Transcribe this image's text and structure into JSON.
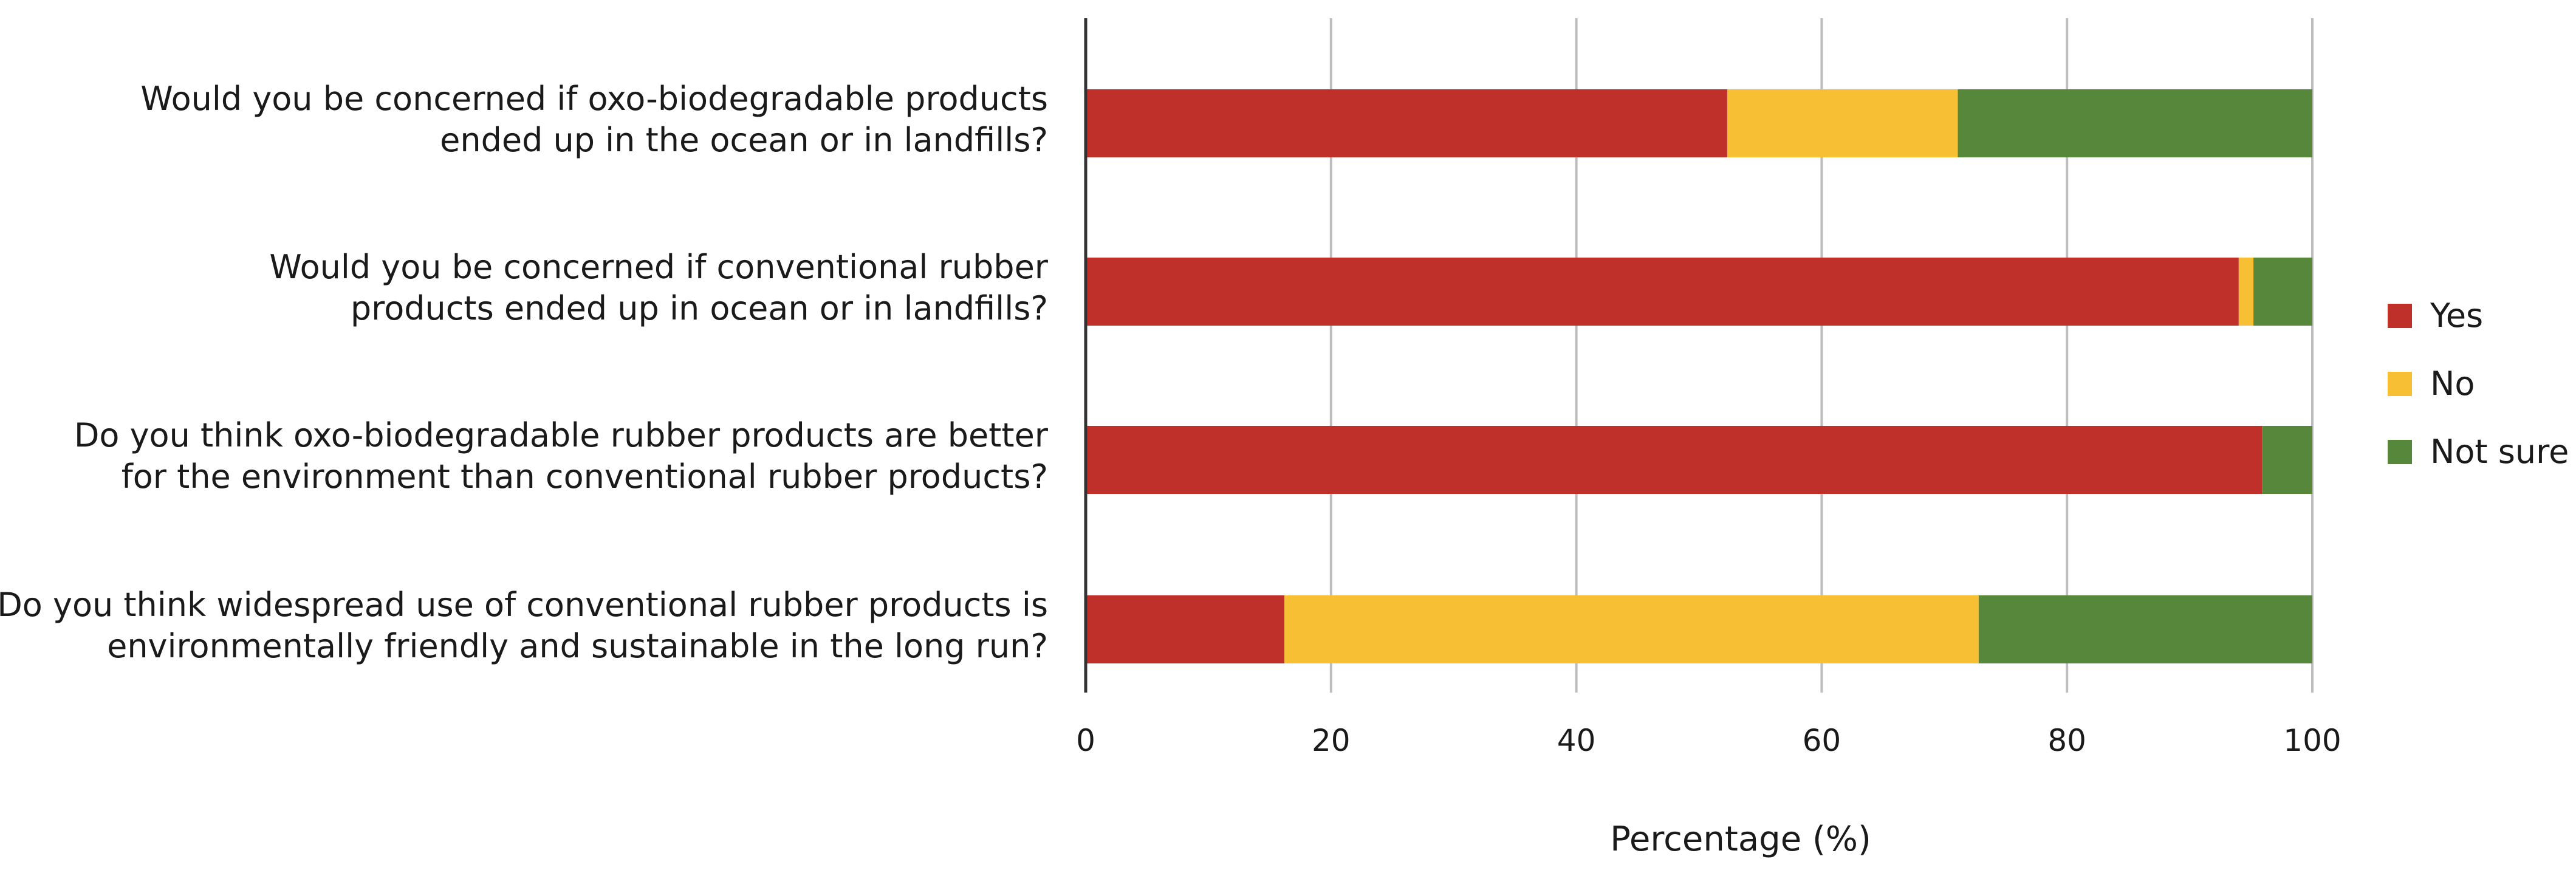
{
  "chart_data": {
    "type": "bar",
    "orientation": "horizontal",
    "stacked": true,
    "title": "",
    "xlabel": "Percentage (%)",
    "ylabel": "",
    "xlim": [
      0,
      100
    ],
    "xticks": [
      "0",
      "20",
      "40",
      "60",
      "80",
      "100"
    ],
    "grid": true,
    "legend_position": "right",
    "categories": [
      [
        "Would you be concerned if oxo-biodegradable products",
        "ended up in the ocean or in landfills?"
      ],
      [
        "Would you be concerned if conventional rubber",
        "products ended up in ocean or in landfills?"
      ],
      [
        "Do you think oxo-biodegradable rubber products are better",
        "for the environment than conventional rubber products?"
      ],
      [
        "Do you think widespread use of conventional rubber products is",
        "environmentally friendly and sustainable in the long run?"
      ]
    ],
    "series": [
      {
        "name": "Yes",
        "color": "#c0302a",
        "values": [
          52.3,
          94.0,
          95.9,
          16.2
        ]
      },
      {
        "name": "No",
        "color": "#f6bf34",
        "values": [
          18.8,
          1.2,
          0.0,
          56.6
        ]
      },
      {
        "name": "Not sure",
        "color": "#56873a",
        "values": [
          28.9,
          4.8,
          4.1,
          27.2
        ]
      }
    ]
  }
}
